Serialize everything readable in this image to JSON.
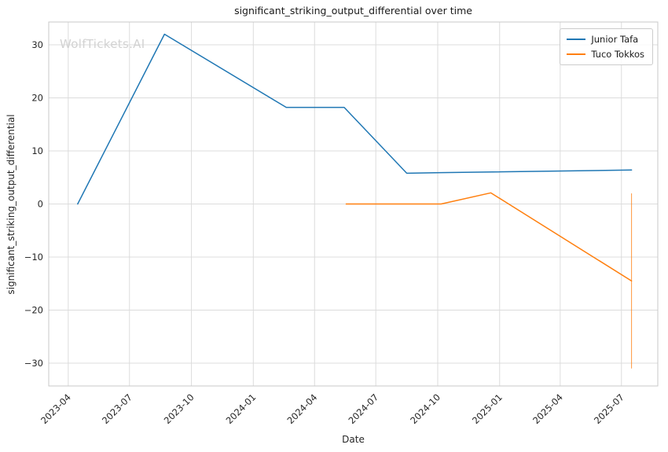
{
  "chart_data": {
    "type": "line",
    "title": "significant_striking_output_differential over time",
    "xlabel": "Date",
    "ylabel": "significant_striking_output_differential",
    "watermark": "WolfTickets.AI",
    "grid": true,
    "legend_position": "top-right",
    "x_domain": [
      "2023-03-03",
      "2025-08-24"
    ],
    "ylim": [
      -34.3,
      34.3
    ],
    "y_ticks": [
      -30,
      -20,
      -10,
      0,
      10,
      20,
      30
    ],
    "x_ticks": [
      "2023-04",
      "2023-07",
      "2023-10",
      "2024-01",
      "2024-04",
      "2024-07",
      "2024-10",
      "2025-01",
      "2025-04",
      "2025-07"
    ],
    "series": [
      {
        "name": "Junior Tafa",
        "color": "#1f77b4",
        "points": [
          {
            "date": "2023-04-15",
            "value": 0
          },
          {
            "date": "2023-08-22",
            "value": 32
          },
          {
            "date": "2024-02-19",
            "value": 18.2
          },
          {
            "date": "2024-05-15",
            "value": 18.2
          },
          {
            "date": "2024-08-16",
            "value": 5.8
          },
          {
            "date": "2024-10-05",
            "value": 5.9
          },
          {
            "date": "2025-07-16",
            "value": 6.4
          }
        ]
      },
      {
        "name": "Tuco Tokkos",
        "color": "#ff7f0e",
        "points": [
          {
            "date": "2024-05-18",
            "value": 0
          },
          {
            "date": "2024-10-06",
            "value": 0
          },
          {
            "date": "2024-12-19",
            "value": 2.1
          },
          {
            "date": "2025-07-16",
            "value": -14.5
          }
        ],
        "error_bar": {
          "date": "2025-07-16",
          "from": 2.0,
          "to": -31.0
        }
      }
    ]
  }
}
